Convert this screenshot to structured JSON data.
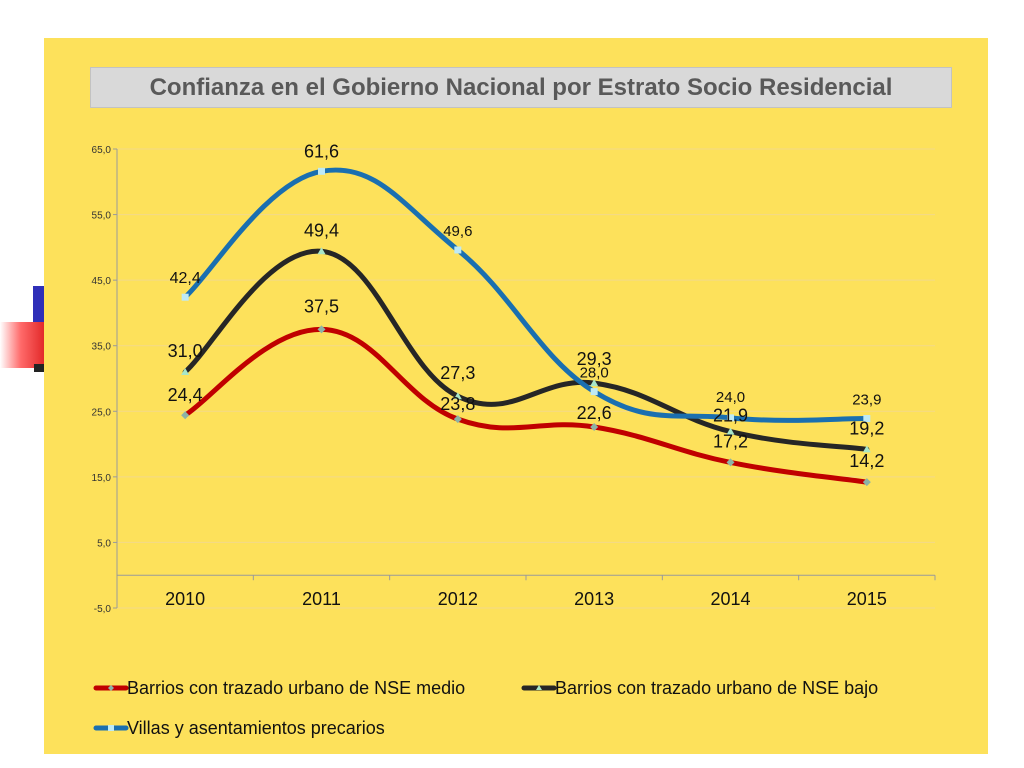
{
  "chart_data": {
    "type": "line",
    "title": "Confianza en el Gobierno Nacional por Estrato Socio Residencial",
    "categories": [
      "2010",
      "2011",
      "2012",
      "2013",
      "2014",
      "2015"
    ],
    "ylim": [
      -5,
      65
    ],
    "yticks": [
      "65,0",
      "55,0",
      "45,0",
      "35,0",
      "25,0",
      "15,0",
      "5,0",
      "-5,0"
    ],
    "grid": true,
    "legend_position": "bottom",
    "series": [
      {
        "name": "Barrios con trazado urbano de NSE medio",
        "color": "#c00000",
        "marker": "diamond",
        "values": [
          24.4,
          37.5,
          23.8,
          22.6,
          17.2,
          14.2
        ],
        "labels": [
          "24,4",
          "37,5",
          "23,8",
          "22,6",
          "17,2",
          "14,2"
        ]
      },
      {
        "name": "Barrios con trazado urbano de NSE bajo",
        "color": "#262626",
        "marker": "triangle",
        "values": [
          31.0,
          49.4,
          27.3,
          29.3,
          21.9,
          19.2
        ],
        "labels": [
          "31,0",
          "49,4",
          "27,3",
          "29,3",
          "21,9",
          "19,2"
        ]
      },
      {
        "name": "Villas y asentamientos precarios",
        "color": "#1a6fb0",
        "marker": "square",
        "values": [
          42.4,
          61.6,
          49.6,
          28.0,
          24.0,
          23.9
        ],
        "labels": [
          "42,4",
          "61,6",
          "49,6",
          "28,0",
          "24,0",
          "23,9"
        ]
      }
    ]
  }
}
